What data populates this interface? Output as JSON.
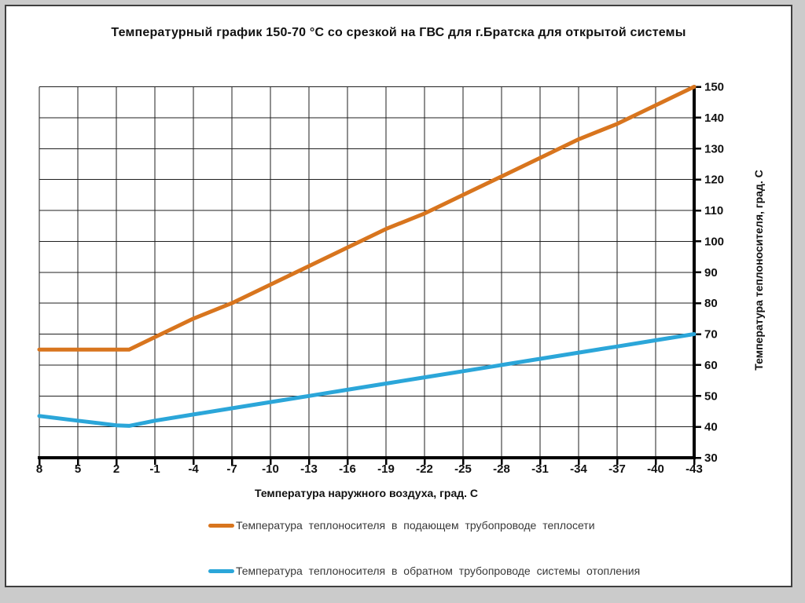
{
  "chart_data": {
    "type": "line",
    "title": "Температурный график 150-70 °С со срезкой на ГВС для г.Братска для открытой системы",
    "xlabel": "Температура наружного воздуха, град. С",
    "ylabel": "Температура теплоносителя,  град. С",
    "x_ticks": [
      8,
      5,
      2,
      -1,
      -4,
      -7,
      -10,
      -13,
      -16,
      -19,
      -22,
      -25,
      -28,
      -31,
      -34,
      -37,
      -40,
      -43
    ],
    "y_ticks": [
      30,
      40,
      50,
      60,
      70,
      80,
      90,
      100,
      110,
      120,
      130,
      140,
      150
    ],
    "xlim": [
      8,
      -43
    ],
    "ylim": [
      30,
      150
    ],
    "grid": true,
    "legend_position": "bottom",
    "colors": {
      "grid": "#1f1f1f",
      "axis": "#000000",
      "supply": "#D8751E",
      "return": "#2BA6D9",
      "text": "#111111"
    },
    "series": [
      {
        "name": "Температура теплоносителя в подающем трубопроводе теплосети",
        "color": "#D8751E",
        "x": [
          8,
          5,
          2,
          1,
          -1,
          -4,
          -7,
          -10,
          -13,
          -16,
          -19,
          -22,
          -25,
          -28,
          -31,
          -34,
          -37,
          -40,
          -43
        ],
        "y": [
          65,
          65,
          65,
          65,
          69,
          75,
          80,
          86,
          92,
          98,
          104,
          109,
          115,
          121,
          127,
          133,
          138,
          144,
          150
        ]
      },
      {
        "name": "Температура теплоносителя в обратном трубопроводе системы отопления",
        "color": "#2BA6D9",
        "x": [
          8,
          5,
          2,
          1,
          -1,
          -4,
          -7,
          -10,
          -13,
          -16,
          -19,
          -22,
          -25,
          -28,
          -31,
          -34,
          -37,
          -40,
          -43
        ],
        "y": [
          43.5,
          42,
          40.5,
          40.3,
          42,
          44,
          46,
          48,
          50,
          52,
          54,
          56,
          58,
          60,
          62,
          64,
          66,
          68,
          70
        ]
      }
    ]
  }
}
